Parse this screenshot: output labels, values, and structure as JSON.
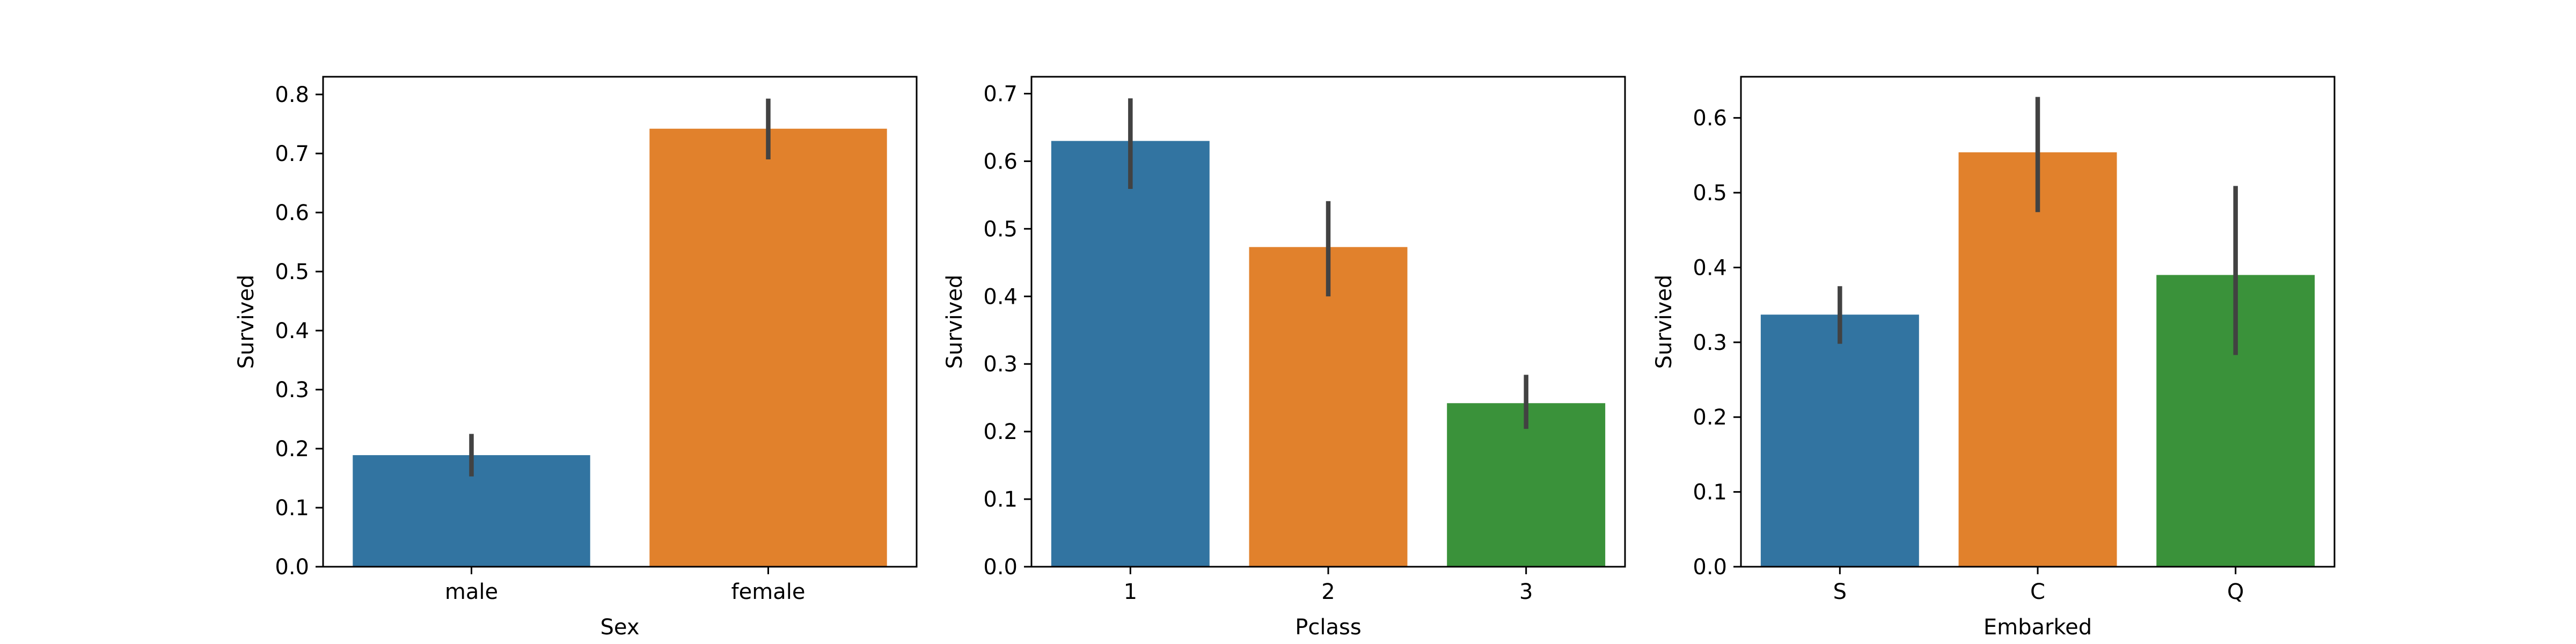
{
  "chart_data": [
    {
      "type": "bar",
      "xlabel": "Sex",
      "ylabel": "Survived",
      "categories": [
        "male",
        "female"
      ],
      "values": [
        0.189,
        0.742
      ],
      "ci": [
        [
          0.153,
          0.225
        ],
        [
          0.69,
          0.793
        ]
      ],
      "ylim": [
        0,
        0.83
      ],
      "yticks": [
        0.0,
        0.1,
        0.2,
        0.3,
        0.4,
        0.5,
        0.6,
        0.7,
        0.8
      ],
      "ytick_labels": [
        "0.0",
        "0.1",
        "0.2",
        "0.3",
        "0.4",
        "0.5",
        "0.6",
        "0.7",
        "0.8"
      ],
      "colors": [
        "#3274a1",
        "#e1812c"
      ],
      "grid": false
    },
    {
      "type": "bar",
      "xlabel": "Pclass",
      "ylabel": "Survived",
      "categories": [
        "1",
        "2",
        "3"
      ],
      "values": [
        0.63,
        0.473,
        0.242
      ],
      "ci": [
        [
          0.559,
          0.693
        ],
        [
          0.4,
          0.541
        ],
        [
          0.204,
          0.284
        ]
      ],
      "ylim": [
        0,
        0.725
      ],
      "yticks": [
        0.0,
        0.1,
        0.2,
        0.3,
        0.4,
        0.5,
        0.6,
        0.7
      ],
      "ytick_labels": [
        "0.0",
        "0.1",
        "0.2",
        "0.3",
        "0.4",
        "0.5",
        "0.6",
        "0.7"
      ],
      "colors": [
        "#3274a1",
        "#e1812c",
        "#3a923a"
      ],
      "grid": false
    },
    {
      "type": "bar",
      "xlabel": "Embarked",
      "ylabel": "Survived",
      "categories": [
        "S",
        "C",
        "Q"
      ],
      "values": [
        0.337,
        0.554,
        0.39
      ],
      "ci": [
        [
          0.298,
          0.375
        ],
        [
          0.474,
          0.628
        ],
        [
          0.283,
          0.509
        ]
      ],
      "ylim": [
        0,
        0.655
      ],
      "yticks": [
        0.0,
        0.1,
        0.2,
        0.3,
        0.4,
        0.5,
        0.6
      ],
      "ytick_labels": [
        "0.0",
        "0.1",
        "0.2",
        "0.3",
        "0.4",
        "0.5",
        "0.6"
      ],
      "colors": [
        "#3274a1",
        "#e1812c",
        "#3a923a"
      ],
      "grid": false
    }
  ],
  "style": {
    "errorbar_color": "#424242",
    "axis_color": "#000000"
  }
}
